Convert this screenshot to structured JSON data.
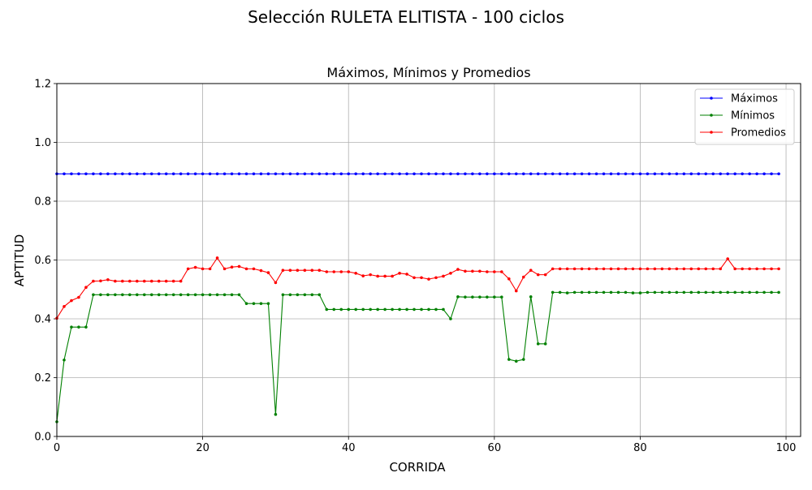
{
  "chart_data": {
    "type": "line",
    "suptitle": "Selección RULETA ELITISTA - 100 ciclos",
    "title": "Máximos, Mínimos y Promedios",
    "xlabel": "CORRIDA",
    "ylabel": "APTITUD",
    "xlim": [
      0,
      102
    ],
    "ylim": [
      0,
      1.2
    ],
    "xticks": [
      0,
      20,
      40,
      60,
      80,
      100
    ],
    "xtick_labels": [
      "0",
      "20",
      "40",
      "60",
      "80",
      "100"
    ],
    "yticks": [
      0,
      0.2,
      0.4,
      0.6,
      0.8,
      1.0,
      1.2
    ],
    "ytick_labels": [
      "0.0",
      "0.2",
      "0.4",
      "0.6",
      "0.8",
      "1.0",
      "1.2"
    ],
    "grid": true,
    "legend_position": "top-right",
    "x": [
      0,
      1,
      2,
      3,
      4,
      5,
      6,
      7,
      8,
      9,
      10,
      11,
      12,
      13,
      14,
      15,
      16,
      17,
      18,
      19,
      20,
      21,
      22,
      23,
      24,
      25,
      26,
      27,
      28,
      29,
      30,
      31,
      32,
      33,
      34,
      35,
      36,
      37,
      38,
      39,
      40,
      41,
      42,
      43,
      44,
      45,
      46,
      47,
      48,
      49,
      50,
      51,
      52,
      53,
      54,
      55,
      56,
      57,
      58,
      59,
      60,
      61,
      62,
      63,
      64,
      65,
      66,
      67,
      68,
      69,
      70,
      71,
      72,
      73,
      74,
      75,
      76,
      77,
      78,
      79,
      80,
      81,
      82,
      83,
      84,
      85,
      86,
      87,
      88,
      89,
      90,
      91,
      92,
      93,
      94,
      95,
      96,
      97,
      98,
      99
    ],
    "series": [
      {
        "name": "Máximos",
        "color": "#0000ff",
        "values": [
          0.893,
          0.893,
          0.893,
          0.893,
          0.893,
          0.893,
          0.893,
          0.893,
          0.893,
          0.893,
          0.893,
          0.893,
          0.893,
          0.893,
          0.893,
          0.893,
          0.893,
          0.893,
          0.893,
          0.893,
          0.893,
          0.893,
          0.893,
          0.893,
          0.893,
          0.893,
          0.893,
          0.893,
          0.893,
          0.893,
          0.893,
          0.893,
          0.893,
          0.893,
          0.893,
          0.893,
          0.893,
          0.893,
          0.893,
          0.893,
          0.893,
          0.893,
          0.893,
          0.893,
          0.893,
          0.893,
          0.893,
          0.893,
          0.893,
          0.893,
          0.893,
          0.893,
          0.893,
          0.893,
          0.893,
          0.893,
          0.893,
          0.893,
          0.893,
          0.893,
          0.893,
          0.893,
          0.893,
          0.893,
          0.893,
          0.893,
          0.893,
          0.893,
          0.893,
          0.893,
          0.893,
          0.893,
          0.893,
          0.893,
          0.893,
          0.893,
          0.893,
          0.893,
          0.893,
          0.893,
          0.893,
          0.893,
          0.893,
          0.893,
          0.893,
          0.893,
          0.893,
          0.893,
          0.893,
          0.893,
          0.893,
          0.893,
          0.893,
          0.893,
          0.893,
          0.893,
          0.893,
          0.893,
          0.893,
          0.893
        ]
      },
      {
        "name": "Mínimos",
        "color": "#008000",
        "values": [
          0.05,
          0.26,
          0.372,
          0.372,
          0.372,
          0.482,
          0.482,
          0.482,
          0.482,
          0.482,
          0.482,
          0.482,
          0.482,
          0.482,
          0.482,
          0.482,
          0.482,
          0.482,
          0.482,
          0.482,
          0.482,
          0.482,
          0.482,
          0.482,
          0.482,
          0.482,
          0.452,
          0.452,
          0.452,
          0.452,
          0.075,
          0.482,
          0.482,
          0.482,
          0.482,
          0.482,
          0.482,
          0.432,
          0.432,
          0.432,
          0.432,
          0.432,
          0.432,
          0.432,
          0.432,
          0.432,
          0.432,
          0.432,
          0.432,
          0.432,
          0.432,
          0.432,
          0.432,
          0.432,
          0.4,
          0.475,
          0.474,
          0.474,
          0.474,
          0.474,
          0.474,
          0.474,
          0.262,
          0.256,
          0.262,
          0.475,
          0.315,
          0.315,
          0.49,
          0.49,
          0.488,
          0.49,
          0.49,
          0.49,
          0.49,
          0.49,
          0.49,
          0.49,
          0.49,
          0.488,
          0.488,
          0.49,
          0.49,
          0.49,
          0.49,
          0.49,
          0.49,
          0.49,
          0.49,
          0.49,
          0.49,
          0.49,
          0.49,
          0.49,
          0.49,
          0.49,
          0.49,
          0.49,
          0.49,
          0.49
        ]
      },
      {
        "name": "Promedios",
        "color": "#ff0000",
        "values": [
          0.402,
          0.442,
          0.462,
          0.473,
          0.507,
          0.528,
          0.529,
          0.533,
          0.528,
          0.528,
          0.528,
          0.528,
          0.528,
          0.528,
          0.528,
          0.528,
          0.528,
          0.528,
          0.57,
          0.575,
          0.57,
          0.57,
          0.607,
          0.57,
          0.576,
          0.578,
          0.57,
          0.57,
          0.564,
          0.557,
          0.523,
          0.565,
          0.565,
          0.565,
          0.565,
          0.565,
          0.565,
          0.56,
          0.56,
          0.56,
          0.56,
          0.555,
          0.546,
          0.55,
          0.545,
          0.545,
          0.545,
          0.555,
          0.552,
          0.54,
          0.54,
          0.535,
          0.54,
          0.545,
          0.555,
          0.568,
          0.562,
          0.562,
          0.562,
          0.56,
          0.56,
          0.56,
          0.536,
          0.495,
          0.542,
          0.565,
          0.55,
          0.55,
          0.57,
          0.57,
          0.57,
          0.57,
          0.57,
          0.57,
          0.57,
          0.57,
          0.57,
          0.57,
          0.57,
          0.57,
          0.57,
          0.57,
          0.57,
          0.57,
          0.57,
          0.57,
          0.57,
          0.57,
          0.57,
          0.57,
          0.57,
          0.57,
          0.604,
          0.57,
          0.57,
          0.57,
          0.57,
          0.57,
          0.57,
          0.57
        ]
      }
    ]
  }
}
